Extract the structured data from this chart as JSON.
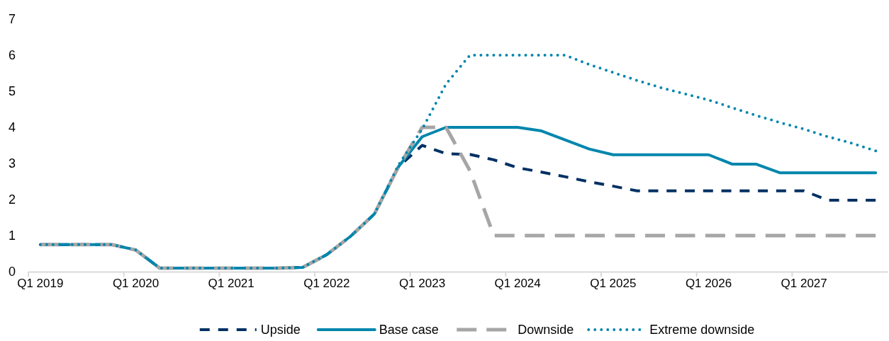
{
  "chart_data": {
    "type": "line",
    "categories": [
      "Q1 2019",
      null,
      null,
      null,
      "Q1 2020",
      null,
      null,
      null,
      "Q1 2021",
      null,
      null,
      null,
      "Q1 2022",
      null,
      null,
      null,
      "Q1 2023",
      null,
      null,
      null,
      "Q1 2024",
      null,
      null,
      null,
      "Q1 2025",
      null,
      null,
      null,
      "Q1 2026",
      null,
      null,
      null,
      "Q1 2027",
      null,
      null,
      null
    ],
    "ylim": [
      0,
      7
    ],
    "yticks": [
      0,
      1,
      2,
      3,
      4,
      5,
      6,
      7
    ],
    "grid": false,
    "legend": "bottom",
    "marker": "none",
    "series": [
      {
        "name": "Upside",
        "color": "#003063",
        "line_style": "dashed",
        "values": [
          0.75,
          0.75,
          0.75,
          0.75,
          0.6,
          0.1,
          0.1,
          0.1,
          0.1,
          0.1,
          0.1,
          0.12,
          0.47,
          0.98,
          1.6,
          2.9,
          3.5,
          3.27,
          3.25,
          3.1,
          2.88,
          2.76,
          2.63,
          2.49,
          2.37,
          2.24,
          2.24,
          2.24,
          2.24,
          2.24,
          2.24,
          2.24,
          2.24,
          1.98,
          1.98,
          1.98
        ]
      },
      {
        "name": "Base case",
        "color": "#0086ad",
        "line_style": "solid",
        "values": [
          0.75,
          0.75,
          0.75,
          0.75,
          0.6,
          0.1,
          0.1,
          0.1,
          0.1,
          0.1,
          0.1,
          0.12,
          0.47,
          0.98,
          1.6,
          2.9,
          3.74,
          4.0,
          4.0,
          4.0,
          4.0,
          3.9,
          3.65,
          3.4,
          3.24,
          3.24,
          3.24,
          3.24,
          3.24,
          2.98,
          2.98,
          2.74,
          2.74,
          2.74,
          2.74,
          2.74
        ]
      },
      {
        "name": "Downside",
        "color": "#a6a6a6",
        "line_style": "longdash",
        "values": [
          0.75,
          0.75,
          0.75,
          0.75,
          0.6,
          0.1,
          0.1,
          0.1,
          0.1,
          0.1,
          0.1,
          0.12,
          0.47,
          0.98,
          1.6,
          2.9,
          4.0,
          4.0,
          2.8,
          1.0,
          1.0,
          1.0,
          1.0,
          1.0,
          1.0,
          1.0,
          1.0,
          1.0,
          1.0,
          1.0,
          1.0,
          1.0,
          1.0,
          1.0,
          1.0,
          1.0
        ]
      },
      {
        "name": "Extreme downside",
        "color": "#0086ad",
        "line_style": "dotted",
        "values": [
          0.75,
          0.75,
          0.75,
          0.75,
          0.6,
          0.1,
          0.1,
          0.1,
          0.1,
          0.1,
          0.1,
          0.12,
          0.47,
          0.98,
          1.6,
          2.95,
          3.95,
          5.2,
          6.0,
          6.0,
          6.0,
          6.0,
          6.0,
          5.74,
          5.52,
          5.3,
          5.1,
          4.93,
          4.76,
          4.54,
          4.33,
          4.13,
          3.95,
          3.74,
          3.56,
          3.35
        ]
      }
    ]
  }
}
